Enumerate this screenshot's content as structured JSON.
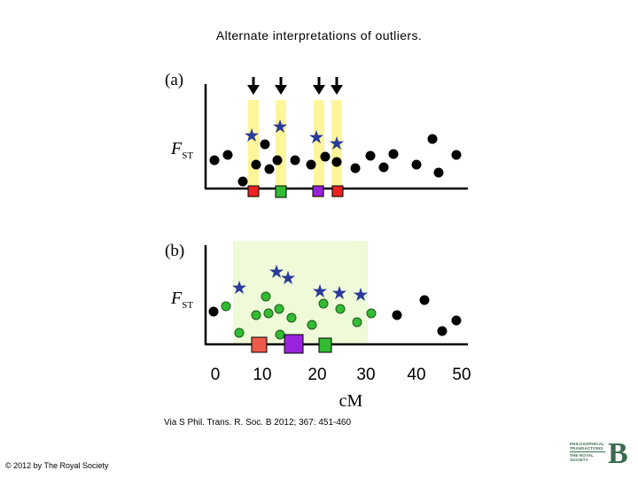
{
  "slide": {
    "title": "Alternate interpretations of outliers.",
    "caption": "Via S Phil. Trans. R. Soc. B 2012; 367: 451-460",
    "copyright": "© 2012 by The Royal Society",
    "logo_text": {
      "line1": "PHILOSOPHICAL",
      "line2": "TRANSACTIONS",
      "line3": "THE ROYAL",
      "line4": "SOCIETY",
      "mark": "B"
    }
  },
  "figure": {
    "panel_a": {
      "label": "(a)",
      "ylabel_main": "F",
      "ylabel_sub": "ST"
    },
    "panel_b": {
      "label": "(b)",
      "ylabel_main": "F",
      "ylabel_sub": "ST"
    },
    "x_axis": {
      "label": "cM",
      "ticks": [
        "0",
        "10",
        "20",
        "30",
        "40",
        "50"
      ]
    },
    "colors": {
      "black_dot": "#000000",
      "green_dot": "#33bb33",
      "star": "#2a3a9a",
      "highlight_bar": "#fff59a",
      "highlight_region": "#eefad8",
      "red_marker": "#ee2222",
      "green_marker": "#33bb33",
      "purple_marker": "#9922dd",
      "light_red_marker": "#ee5a4a"
    }
  }
}
